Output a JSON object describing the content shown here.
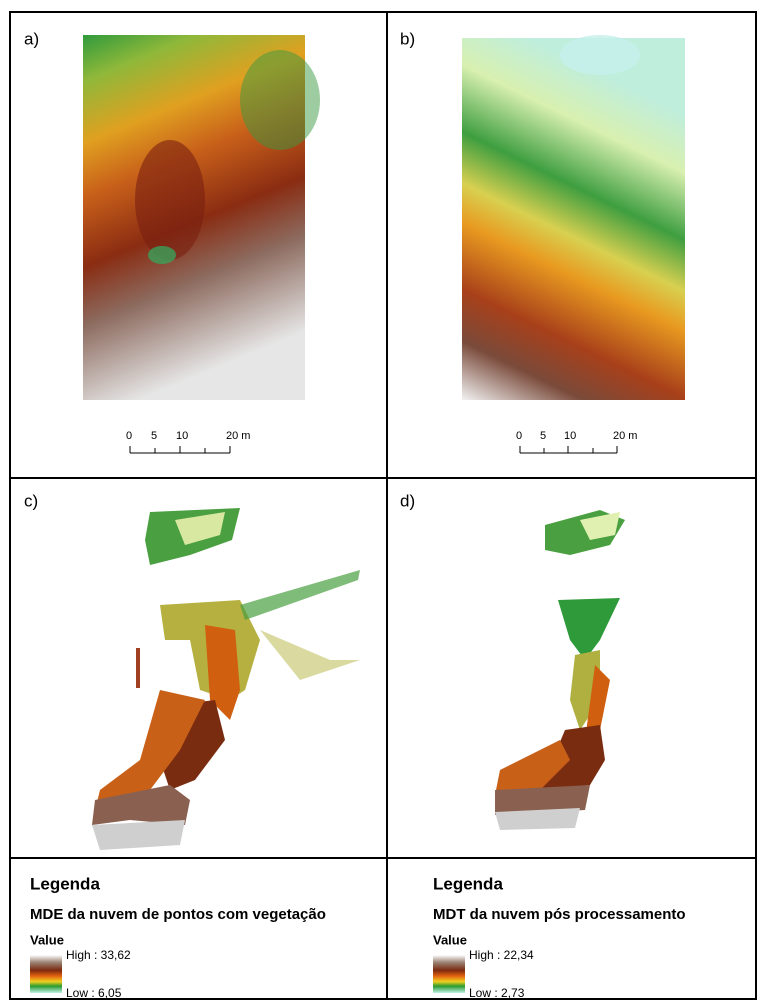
{
  "panels": [
    {
      "label": "a)",
      "scale_bar": [
        "0",
        "5",
        "10",
        "20 m"
      ]
    },
    {
      "label": "b)",
      "scale_bar": [
        "0",
        "5",
        "10",
        "20 m"
      ]
    },
    {
      "label": "c)"
    },
    {
      "label": "d)"
    }
  ],
  "legends": [
    {
      "heading": "Legenda",
      "title": "MDE da nuvem de pontos com vegetação",
      "value_label": "Value",
      "high": "High : 33,62",
      "low": "Low : 6,05"
    },
    {
      "heading": "Legenda",
      "title": "MDT da nuvem pós processamento",
      "value_label": "Value",
      "high": "High : 22,34",
      "low": "Low : 2,73"
    }
  ]
}
